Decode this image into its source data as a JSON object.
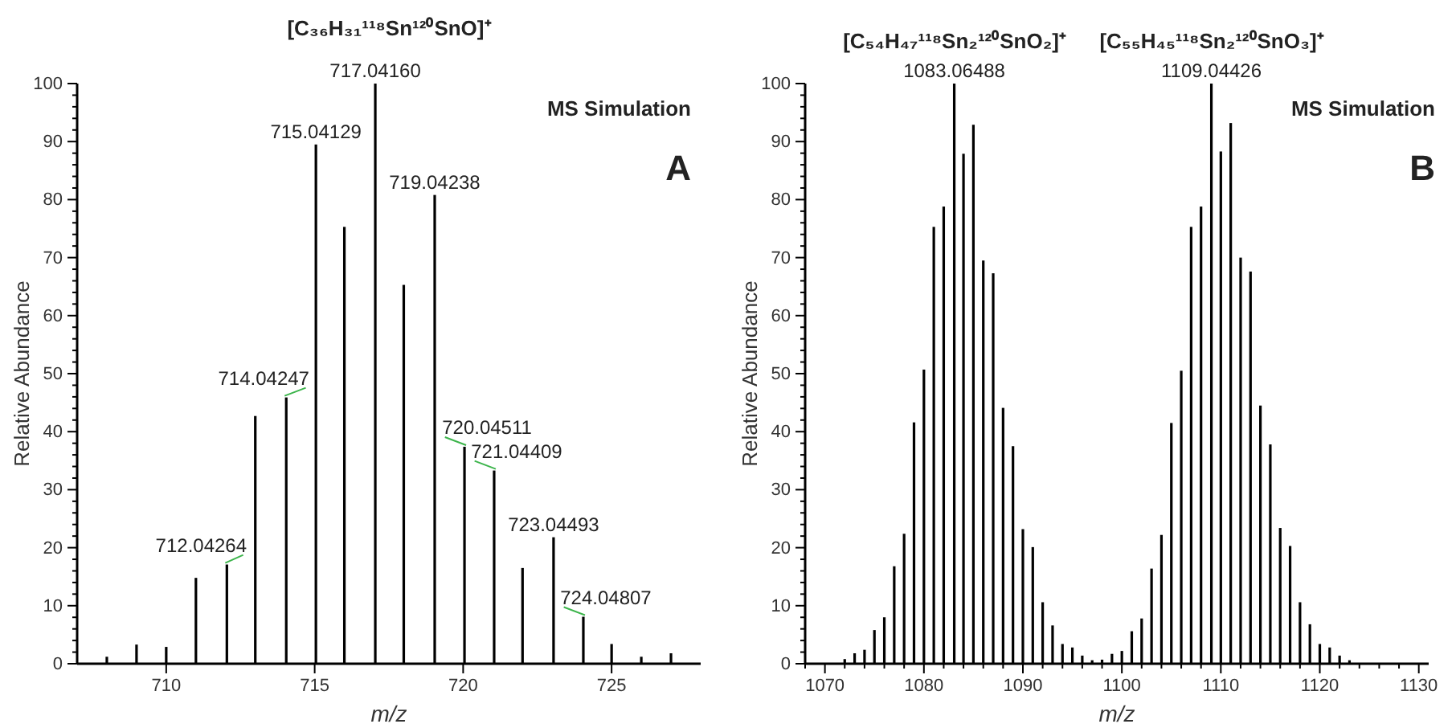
{
  "chart_data": [
    {
      "type": "bar",
      "title": "[C₃₆H₃₁¹¹⁸Sn¹²⁰SnO]⁺",
      "xlabel": "m/z",
      "ylabel": "Relative Abundance",
      "x": [
        708,
        709,
        710,
        711,
        712.04264,
        713,
        714.04247,
        715.04129,
        716,
        717.0416,
        718,
        719.04238,
        720.04511,
        721.04409,
        722,
        723.04493,
        724.04807,
        725,
        726,
        727
      ],
      "values": [
        1.2,
        3.3,
        2.9,
        14.8,
        17.1,
        42.7,
        45.9,
        89.5,
        75.3,
        100,
        65.3,
        80.8,
        37.4,
        33.3,
        16.5,
        21.8,
        8.1,
        3.4,
        1.2,
        1.8
      ],
      "color": "#000000",
      "xlim": [
        707,
        728
      ],
      "xticks": [
        710,
        715,
        720,
        725
      ],
      "ylim": [
        0,
        100
      ],
      "yticks": [
        0,
        {
          "value": 2,
          "label": null
        },
        {
          "value": 4,
          "label": null
        },
        {
          "value": 6,
          "label": null
        },
        {
          "value": 8,
          "label": null
        },
        10,
        {
          "value": 12,
          "label": null
        },
        {
          "value": 14,
          "label": null
        },
        {
          "value": 16,
          "label": null
        },
        {
          "value": 18,
          "label": null
        },
        20,
        {
          "value": 22,
          "label": null
        },
        {
          "value": 24,
          "label": null
        },
        {
          "value": 26,
          "label": null
        },
        {
          "value": 28,
          "label": null
        },
        30,
        {
          "value": 32,
          "label": null
        },
        {
          "value": 34,
          "label": null
        },
        {
          "value": 36,
          "label": null
        },
        {
          "value": 38,
          "label": null
        },
        40,
        {
          "value": 42,
          "label": null
        },
        {
          "value": 44,
          "label": null
        },
        {
          "value": 46,
          "label": null
        },
        {
          "value": 48,
          "label": null
        },
        50,
        {
          "value": 52,
          "label": null
        },
        {
          "value": 54,
          "label": null
        },
        {
          "value": 56,
          "label": null
        },
        {
          "value": 58,
          "label": null
        },
        60,
        {
          "value": 62,
          "label": null
        },
        {
          "value": 64,
          "label": null
        },
        {
          "value": 66,
          "label": null
        },
        {
          "value": 68,
          "label": null
        },
        70,
        {
          "value": 72,
          "label": null
        },
        {
          "value": 74,
          "label": null
        },
        {
          "value": 76,
          "label": null
        },
        {
          "value": 78,
          "label": null
        },
        80,
        {
          "value": 82,
          "label": null
        },
        {
          "value": 84,
          "label": null
        },
        {
          "value": 86,
          "label": null
        },
        {
          "value": 88,
          "label": null
        },
        90,
        {
          "value": 92,
          "label": null
        },
        {
          "value": 94,
          "label": null
        },
        {
          "value": 96,
          "label": null
        },
        {
          "value": 98,
          "label": null
        },
        100
      ],
      "annotations": [
        {
          "text": "712.04264",
          "x": 712.04264,
          "y": 17.1
        },
        {
          "text": "714.04247",
          "x": 714.04247,
          "y": 45.9
        },
        {
          "text": "715.04129",
          "x": 715.04129,
          "y": 89.5
        },
        {
          "text": "717.04160",
          "x": 717.0416,
          "y": 100
        },
        {
          "text": "719.04238",
          "x": 719.04238,
          "y": 80.8
        },
        {
          "text": "720.04511",
          "x": 720.04511,
          "y": 37.4
        },
        {
          "text": "721.04409",
          "x": 721.04409,
          "y": 33.3
        },
        {
          "text": "723.04493",
          "x": 723.04493,
          "y": 21.8
        },
        {
          "text": "724.04807",
          "x": 724.04807,
          "y": 8.1
        },
        "MS Simulation",
        "A"
      ]
    },
    {
      "type": "bar",
      "xlabel": "m/z",
      "ylabel": "Relative Abundance",
      "x": [
        1072,
        1073,
        1074,
        1075,
        1076,
        1077,
        1078,
        1079,
        1080,
        1081,
        1082,
        1083.06488,
        1084,
        1085,
        1086,
        1087,
        1088,
        1089,
        1090,
        1091,
        1092,
        1093,
        1094,
        1095,
        1096,
        1097,
        1098,
        1099,
        1100,
        1101,
        1102,
        1103,
        1104,
        1105,
        1106,
        1107,
        1108,
        1109.04426,
        1110,
        1111,
        1112,
        1113,
        1114,
        1115,
        1116,
        1117,
        1118,
        1119,
        1120,
        1121,
        1122,
        1123
      ],
      "values": [
        0.8,
        1.8,
        2.4,
        5.8,
        8.0,
        16.8,
        22.4,
        41.6,
        50.7,
        75.3,
        78.8,
        100,
        87.9,
        92.9,
        69.5,
        67.3,
        44.1,
        37.5,
        23.2,
        20.1,
        10.6,
        6.6,
        3.4,
        2.8,
        1.4,
        0.6,
        0.7,
        1.7,
        2.2,
        5.6,
        7.8,
        16.4,
        22.2,
        41.5,
        50.5,
        75.3,
        78.8,
        100,
        88.3,
        93.2,
        70.0,
        67.6,
        44.5,
        37.8,
        23.4,
        20.3,
        10.6,
        6.8,
        3.4,
        2.8,
        1.4,
        0.6
      ],
      "color": "#000000",
      "xlim": [
        1068,
        1131
      ],
      "xticks": [
        {
          "value": 1068,
          "label": null
        },
        1070,
        {
          "value": 1072,
          "label": null
        },
        {
          "value": 1074,
          "label": null
        },
        {
          "value": 1076,
          "label": null
        },
        {
          "value": 1078,
          "label": null
        },
        1080,
        {
          "value": 1082,
          "label": null
        },
        {
          "value": 1084,
          "label": null
        },
        {
          "value": 1086,
          "label": null
        },
        {
          "value": 1088,
          "label": null
        },
        1090,
        {
          "value": 1092,
          "label": null
        },
        {
          "value": 1094,
          "label": null
        },
        {
          "value": 1096,
          "label": null
        },
        {
          "value": 1098,
          "label": null
        },
        1100,
        {
          "value": 1102,
          "label": null
        },
        {
          "value": 1104,
          "label": null
        },
        {
          "value": 1106,
          "label": null
        },
        {
          "value": 1108,
          "label": null
        },
        1110,
        {
          "value": 1112,
          "label": null
        },
        {
          "value": 1114,
          "label": null
        },
        {
          "value": 1116,
          "label": null
        },
        {
          "value": 1118,
          "label": null
        },
        1120,
        {
          "value": 1122,
          "label": null
        },
        {
          "value": 1124,
          "label": null
        },
        {
          "value": 1126,
          "label": null
        },
        {
          "value": 1128,
          "label": null
        },
        1130
      ],
      "ylim": [
        0,
        100
      ],
      "yticks": [
        0,
        {
          "value": 2,
          "label": null
        },
        {
          "value": 4,
          "label": null
        },
        {
          "value": 6,
          "label": null
        },
        {
          "value": 8,
          "label": null
        },
        10,
        {
          "value": 12,
          "label": null
        },
        {
          "value": 14,
          "label": null
        },
        {
          "value": 16,
          "label": null
        },
        {
          "value": 18,
          "label": null
        },
        20,
        {
          "value": 22,
          "label": null
        },
        {
          "value": 24,
          "label": null
        },
        {
          "value": 26,
          "label": null
        },
        {
          "value": 28,
          "label": null
        },
        30,
        {
          "value": 32,
          "label": null
        },
        {
          "value": 34,
          "label": null
        },
        {
          "value": 36,
          "label": null
        },
        {
          "value": 38,
          "label": null
        },
        40,
        {
          "value": 42,
          "label": null
        },
        {
          "value": 44,
          "label": null
        },
        {
          "value": 46,
          "label": null
        },
        {
          "value": 48,
          "label": null
        },
        50,
        {
          "value": 52,
          "label": null
        },
        {
          "value": 54,
          "label": null
        },
        {
          "value": 56,
          "label": null
        },
        {
          "value": 58,
          "label": null
        },
        60,
        {
          "value": 62,
          "label": null
        },
        {
          "value": 64,
          "label": null
        },
        {
          "value": 66,
          "label": null
        },
        {
          "value": 68,
          "label": null
        },
        70,
        {
          "value": 72,
          "label": null
        },
        {
          "value": 74,
          "label": null
        },
        {
          "value": 76,
          "label": null
        },
        {
          "value": 78,
          "label": null
        },
        80,
        {
          "value": 82,
          "label": null
        },
        {
          "value": 84,
          "label": null
        },
        {
          "value": 86,
          "label": null
        },
        {
          "value": 88,
          "label": null
        },
        90,
        {
          "value": 92,
          "label": null
        },
        {
          "value": 94,
          "label": null
        },
        {
          "value": 96,
          "label": null
        },
        {
          "value": 98,
          "label": null
        },
        100
      ],
      "annotations": [
        {
          "text": "1083.06488",
          "x": 1083.06488,
          "y": 100
        },
        {
          "text": "[C₅₄H₄₇¹¹⁸Sn₂¹²⁰SnO₂]⁺",
          "x": 1083.06488,
          "y": 100
        },
        {
          "text": "1109.04426",
          "x": 1109.04426,
          "y": 100
        },
        {
          "text": "[C₅₅H₄₅¹¹⁸Sn₂¹²⁰SnO₃]⁺",
          "x": 1109.04426,
          "y": 100
        },
        "MS Simulation",
        "B"
      ]
    }
  ]
}
